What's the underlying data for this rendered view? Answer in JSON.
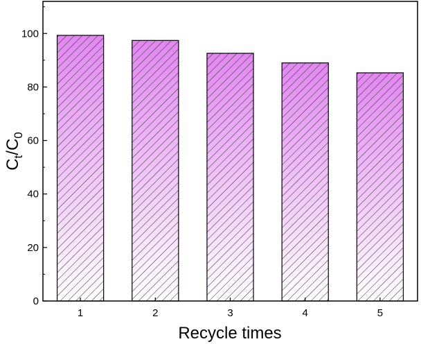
{
  "chart_data": {
    "type": "bar",
    "categories": [
      "1",
      "2",
      "3",
      "4",
      "5"
    ],
    "values": [
      99.3,
      97.4,
      92.6,
      89.0,
      85.3
    ],
    "xlabel": "Recycle times",
    "ylabel": {
      "base1": "C",
      "sub1": "t",
      "sep": "/",
      "base2": "C",
      "sub2": "0"
    },
    "ylim": [
      0,
      112
    ],
    "yticks": [
      0,
      20,
      40,
      60,
      80,
      100
    ],
    "grid": false,
    "bar_fill": {
      "top_color": "#e187f0",
      "bottom_color": "#ffffff",
      "hatch": "diagonal"
    }
  }
}
